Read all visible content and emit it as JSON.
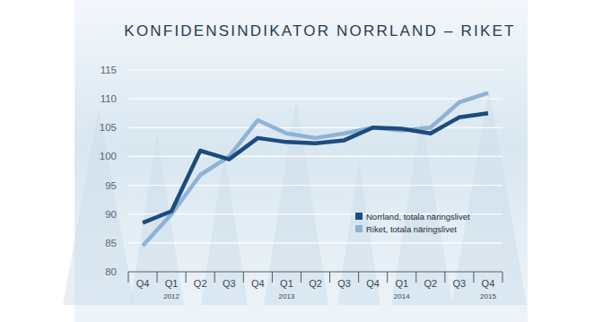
{
  "chart_data": {
    "type": "line",
    "title": "KONFIDENSINDIKATOR NORRLAND – RIKET",
    "categories": [
      "Q4",
      "Q1",
      "Q2",
      "Q3",
      "Q4",
      "Q1",
      "Q2",
      "Q3",
      "Q4",
      "Q1",
      "Q2",
      "Q3",
      "Q4"
    ],
    "x_group_labels": [
      null,
      "2012",
      null,
      null,
      null,
      "2013",
      null,
      null,
      null,
      "2014",
      null,
      null,
      "2015"
    ],
    "series": [
      {
        "name": "Norrland, totala näringslivet",
        "color": "#1c4c7e",
        "values": [
          88.5,
          90.5,
          101,
          99.5,
          103.2,
          102.5,
          102.3,
          102.8,
          105,
          104.8,
          104,
          106.8,
          107.5
        ]
      },
      {
        "name": "Riket, totala näringslivet",
        "color": "#8fb2d6",
        "values": [
          84.5,
          90,
          96.8,
          100,
          106.3,
          104,
          103.2,
          104,
          105,
          104.5,
          105,
          109.4,
          111
        ]
      }
    ],
    "ylim": [
      80,
      115
    ],
    "yticks": [
      80,
      85,
      90,
      95,
      100,
      105,
      110,
      115
    ],
    "grid": true,
    "legend": "lower right"
  }
}
